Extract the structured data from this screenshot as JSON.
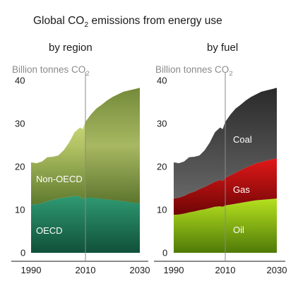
{
  "chart_data": [
    {
      "type": "area",
      "title": "Global CO2 emissions from energy use",
      "subtitle": "by region",
      "ylabel": "Billion tonnes CO2",
      "xlabel": "",
      "ylim": [
        0,
        40
      ],
      "xlim": [
        1990,
        2030
      ],
      "yticks": [
        0,
        10,
        20,
        30,
        40
      ],
      "xticks": [
        1990,
        2010,
        2030
      ],
      "marker_line_x": 2010,
      "stacked": true,
      "x": [
        1990,
        1992,
        1994,
        1996,
        1998,
        2000,
        2002,
        2004,
        2006,
        2008,
        2009,
        2010,
        2012,
        2014,
        2016,
        2018,
        2020,
        2022,
        2024,
        2026,
        2028,
        2030
      ],
      "series": [
        {
          "name": "OECD",
          "color": "#2f9a72",
          "values": [
            11.2,
            11.3,
            11.5,
            12.0,
            12.3,
            12.6,
            12.8,
            13.0,
            13.2,
            13.1,
            12.4,
            12.8,
            12.8,
            12.7,
            12.5,
            12.4,
            12.3,
            12.1,
            12.0,
            11.8,
            11.6,
            11.5
          ]
        },
        {
          "name": "Non-OECD",
          "color": "#d7e87a",
          "values": [
            9.8,
            9.5,
            9.7,
            10.2,
            10.0,
            10.0,
            11.0,
            12.6,
            14.8,
            16.0,
            16.3,
            17.6,
            19.3,
            20.8,
            21.9,
            23.0,
            23.9,
            24.7,
            25.4,
            25.9,
            26.4,
            26.8
          ]
        }
      ],
      "labels": {
        "region_low": "OECD",
        "region_high": "Non-OECD"
      }
    },
    {
      "type": "area",
      "subtitle": "by fuel",
      "ylabel": "Billion tonnes CO2",
      "xlabel": "",
      "ylim": [
        0,
        40
      ],
      "xlim": [
        1990,
        2030
      ],
      "yticks": [
        0,
        10,
        20,
        30,
        40
      ],
      "xticks": [
        1990,
        2010,
        2030
      ],
      "marker_line_x": 2010,
      "stacked": true,
      "x": [
        1990,
        1992,
        1994,
        1996,
        1998,
        2000,
        2002,
        2004,
        2006,
        2008,
        2009,
        2010,
        2012,
        2014,
        2016,
        2018,
        2020,
        2022,
        2024,
        2026,
        2028,
        2030
      ],
      "series": [
        {
          "name": "Oil",
          "color": "#8fc21a",
          "values": [
            8.8,
            8.9,
            9.1,
            9.4,
            9.6,
            9.9,
            10.1,
            10.4,
            10.7,
            10.8,
            10.7,
            11.0,
            11.2,
            11.4,
            11.6,
            11.8,
            12.0,
            12.2,
            12.3,
            12.4,
            12.5,
            12.6
          ]
        },
        {
          "name": "Gas",
          "color": "#c40f0f",
          "values": [
            3.8,
            3.9,
            4.1,
            4.4,
            4.6,
            4.9,
            5.2,
            5.5,
            5.8,
            6.1,
            6.0,
            6.4,
            6.8,
            7.2,
            7.6,
            8.0,
            8.3,
            8.6,
            8.8,
            9.0,
            9.2,
            9.3
          ]
        },
        {
          "name": "Coal",
          "color": "#3a3a3a",
          "values": [
            8.4,
            8.0,
            8.0,
            8.4,
            8.1,
            7.8,
            8.5,
            9.7,
            11.5,
            12.2,
            12.0,
            13.0,
            14.1,
            14.9,
            15.2,
            15.6,
            15.9,
            16.0,
            16.3,
            16.3,
            16.3,
            16.4
          ]
        }
      ],
      "labels": {
        "fuel_low": "Oil",
        "fuel_mid": "Gas",
        "fuel_high": "Coal"
      }
    }
  ]
}
